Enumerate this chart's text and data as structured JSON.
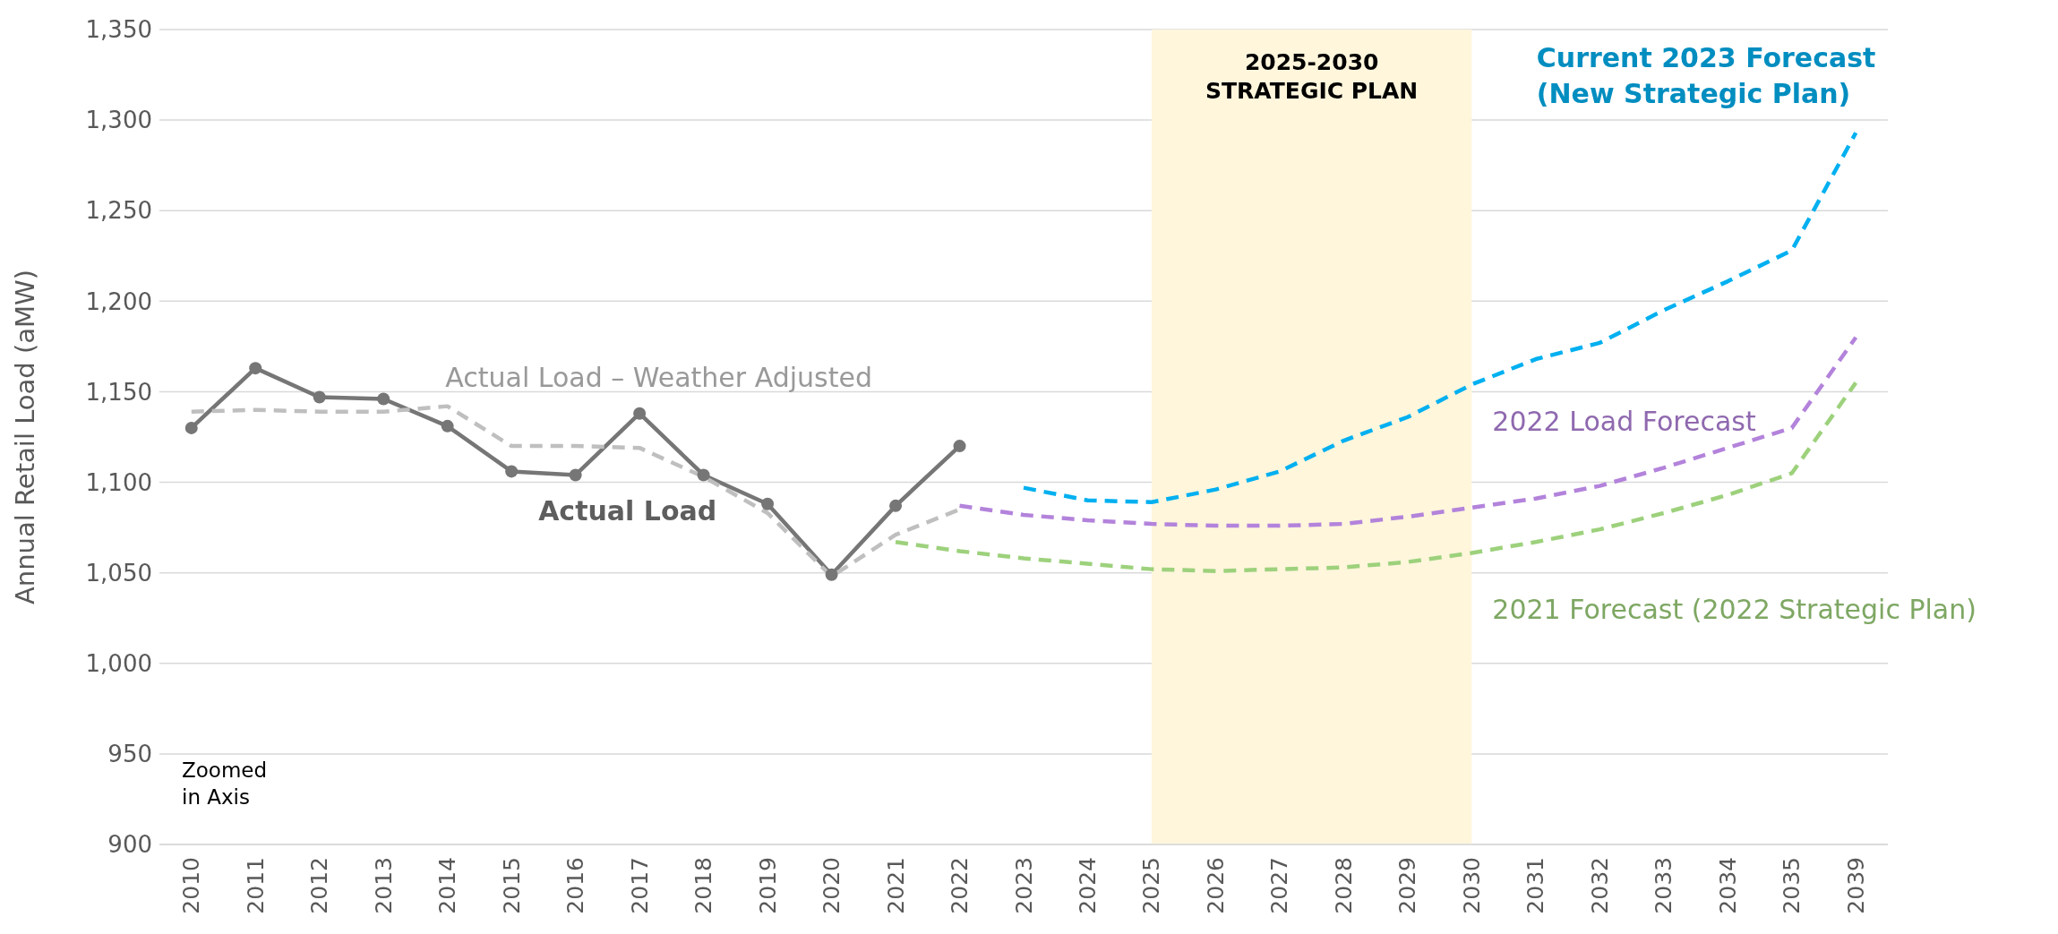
{
  "chart_data": {
    "type": "line",
    "ylabel": "Annual Retail Load (aMW)",
    "categories": [
      "2010",
      "2011",
      "2012",
      "2013",
      "2014",
      "2015",
      "2016",
      "2017",
      "2018",
      "2019",
      "2020",
      "2021",
      "2022",
      "2023",
      "2024",
      "2025",
      "2026",
      "2027",
      "2028",
      "2029",
      "2030",
      "2031",
      "2032",
      "2033",
      "2034",
      "2035",
      "2039"
    ],
    "series": [
      {
        "name": "Actual Load",
        "color": "#767676",
        "line_style": "solid",
        "marker": "circle",
        "values": [
          1130,
          1163,
          1147,
          1146,
          1131,
          1106,
          1104,
          1138,
          1104,
          1088,
          1049,
          1087,
          1120,
          null,
          null,
          null,
          null,
          null,
          null,
          null,
          null,
          null,
          null,
          null,
          null,
          null,
          null
        ]
      },
      {
        "name": "Actual Load – Weather Adjusted",
        "color": "#bfbfbf",
        "line_style": "dashed",
        "marker": "none",
        "values": [
          1139,
          1140,
          1139,
          1139,
          1142,
          1120,
          1120,
          1119,
          1103,
          1083,
          1048,
          1071,
          1085,
          null,
          null,
          null,
          null,
          null,
          null,
          null,
          null,
          null,
          null,
          null,
          null,
          null,
          null
        ]
      },
      {
        "name": "Current 2023 Forecast (New Strategic Plan)",
        "color": "#00b0f0",
        "line_style": "dashed",
        "marker": "none",
        "values": [
          null,
          null,
          null,
          null,
          null,
          null,
          null,
          null,
          null,
          null,
          null,
          null,
          null,
          1097,
          1090,
          1089,
          1096,
          1106,
          1123,
          1136,
          1154,
          1168,
          1177,
          1195,
          1211,
          1228,
          1293
        ]
      },
      {
        "name": "2022 Load Forecast",
        "color": "#b383db",
        "line_style": "dashed",
        "marker": "none",
        "values": [
          null,
          null,
          null,
          null,
          null,
          null,
          null,
          null,
          null,
          null,
          null,
          null,
          1087,
          1082,
          1079,
          1077,
          1076,
          1076,
          1077,
          1081,
          1086,
          1091,
          1098,
          1108,
          1119,
          1130,
          1180
        ]
      },
      {
        "name": "2021 Forecast (2022 Strategic Plan)",
        "color": "#9dd17c",
        "line_style": "dashed",
        "marker": "none",
        "values": [
          null,
          null,
          null,
          null,
          null,
          null,
          null,
          null,
          null,
          null,
          null,
          1067,
          1062,
          1058,
          1055,
          1052,
          1051,
          1052,
          1053,
          1056,
          1061,
          1067,
          1074,
          1083,
          1093,
          1105,
          1155
        ]
      }
    ],
    "ylim": [
      900,
      1350
    ],
    "yticks": [
      {
        "value": 900,
        "label": "900"
      },
      {
        "value": 950,
        "label": "950"
      },
      {
        "value": 1000,
        "label": "1,000"
      },
      {
        "value": 1050,
        "label": "1,050"
      },
      {
        "value": 1100,
        "label": "1,100"
      },
      {
        "value": 1150,
        "label": "1,150"
      },
      {
        "value": 1200,
        "label": "1,200"
      },
      {
        "value": 1250,
        "label": "1,250"
      },
      {
        "value": 1300,
        "label": "1,300"
      },
      {
        "value": 1350,
        "label": "1,350"
      }
    ],
    "bands": [
      {
        "axis": "x",
        "from": "2025",
        "to": "2030",
        "label": "2025-2030 STRATEGIC PLAN",
        "color": "#fff6dc"
      }
    ],
    "annotations": [
      "Zoomed in Axis"
    ],
    "grid": "y"
  }
}
